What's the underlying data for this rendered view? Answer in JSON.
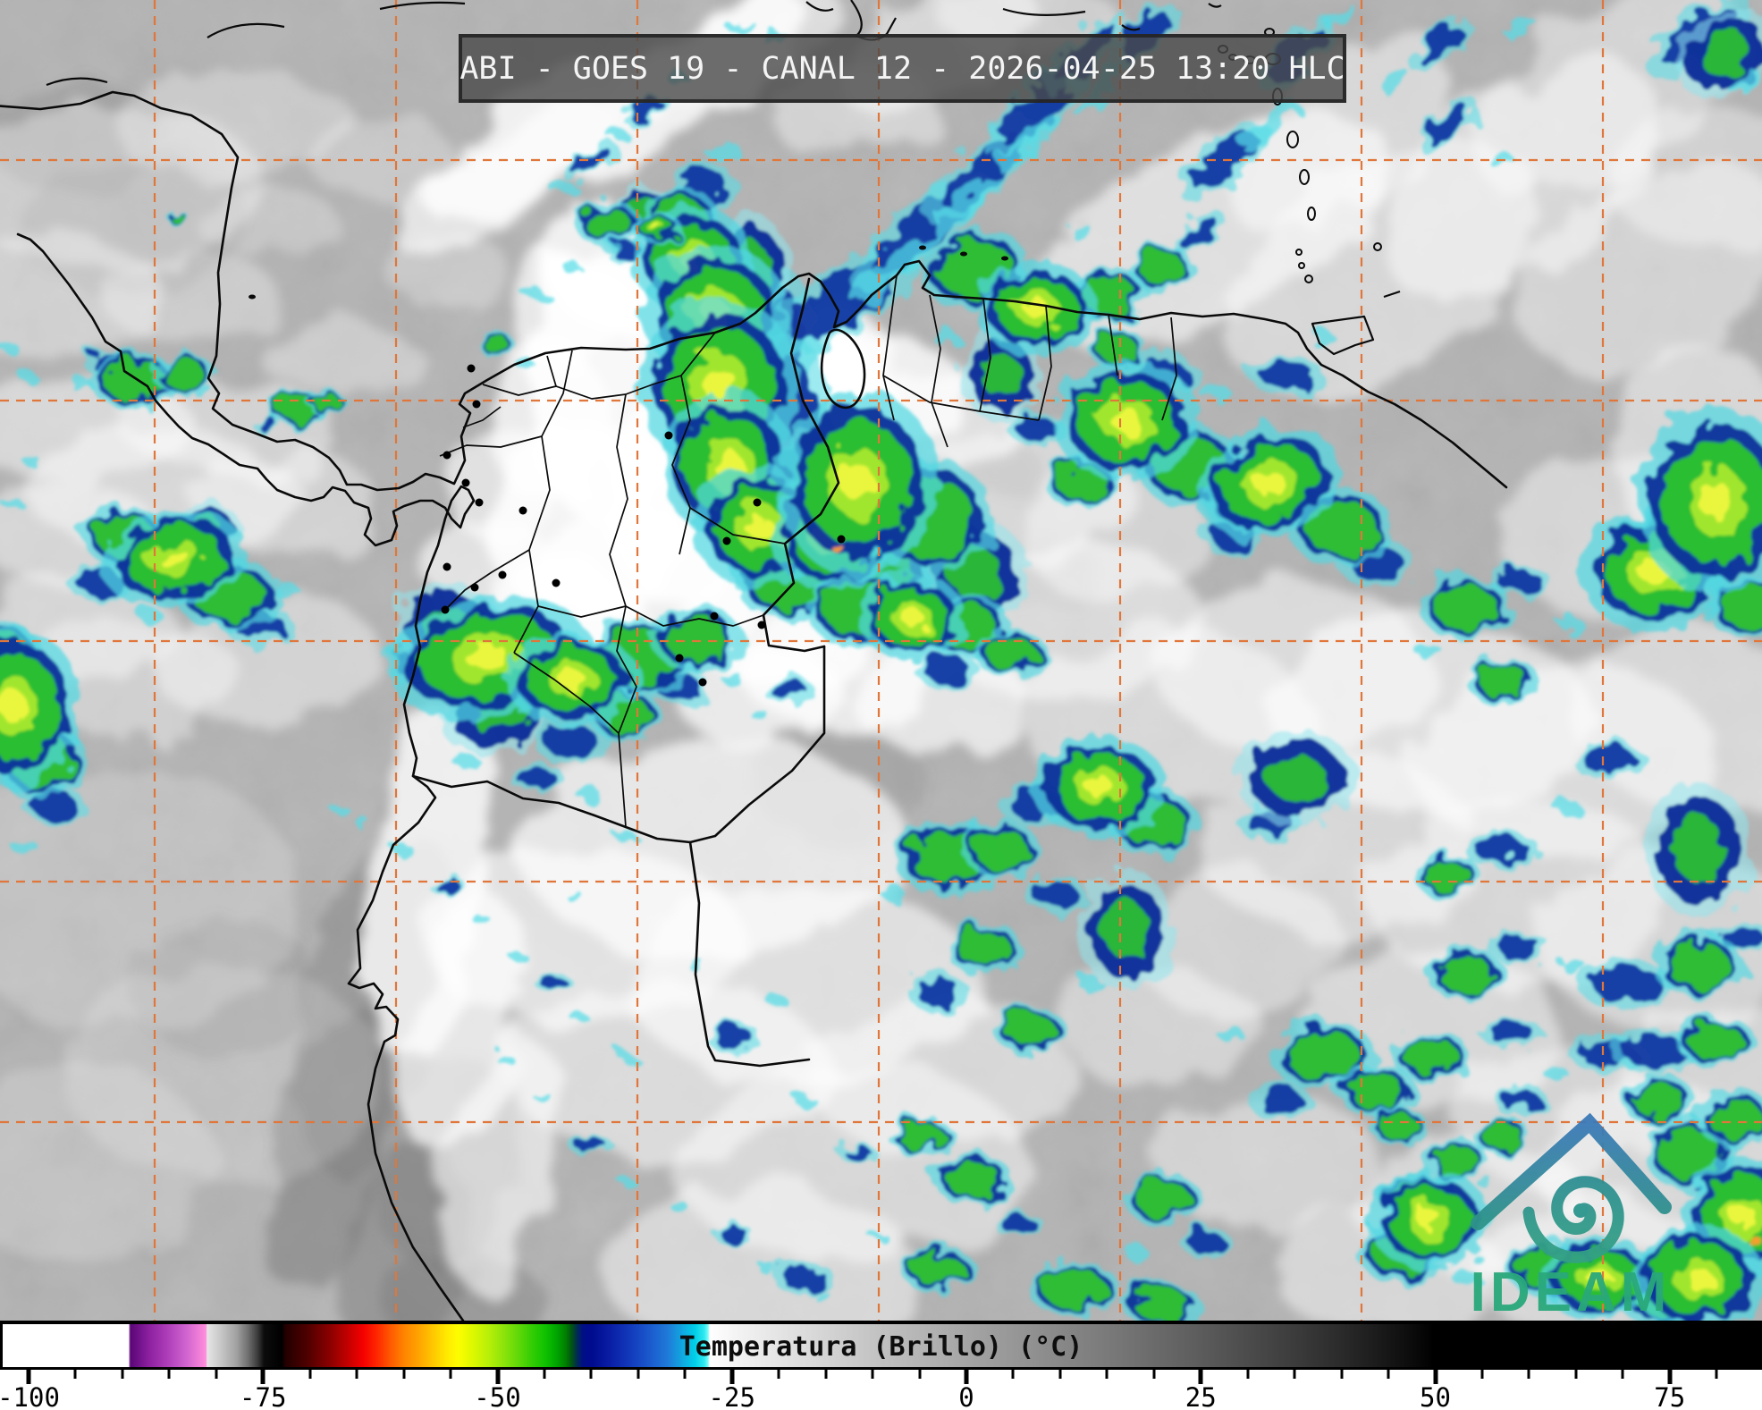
{
  "header": {
    "title": "ABI - GOES 19 - CANAL 12 - 2026-04-25 13:20 HLC"
  },
  "colorbar": {
    "label": "Temperatura (Brillo) (°C)",
    "tick_labels": [
      "-100",
      "-75",
      "-50",
      "-25",
      "0",
      "25",
      "50",
      "75"
    ],
    "tick_values": [
      -100,
      -75,
      -50,
      -25,
      0,
      25,
      50,
      75
    ],
    "minor_tick_step": 5,
    "minor_tick_range": [
      -100,
      80
    ],
    "gradient_stops": [
      [
        -103.1,
        "#ffffff"
      ],
      [
        -89.6,
        "#ffffff"
      ],
      [
        -89.4,
        "#5a0677"
      ],
      [
        -87.5,
        "#8a1f9e"
      ],
      [
        -85.5,
        "#ad3cb8"
      ],
      [
        -83.5,
        "#cf63cf"
      ],
      [
        -82,
        "#f07fd7"
      ],
      [
        -81.3,
        "#ff8fdc"
      ],
      [
        -81.2,
        "#e6e6e6"
      ],
      [
        -79.5,
        "#c2c2c2"
      ],
      [
        -78,
        "#a0a0a0"
      ],
      [
        -76.8,
        "#6f6f6f"
      ],
      [
        -75.8,
        "#3c3c3c"
      ],
      [
        -75.1,
        "#0c0c0c"
      ],
      [
        -73.2,
        "#000000"
      ],
      [
        -72.8,
        "#230000"
      ],
      [
        -70.5,
        "#4e0000"
      ],
      [
        -68,
        "#8c0000"
      ],
      [
        -66,
        "#c80000"
      ],
      [
        -64.5,
        "#f50000"
      ],
      [
        -63,
        "#ff2800"
      ],
      [
        -61.5,
        "#ff5c00"
      ],
      [
        -60,
        "#ff8700"
      ],
      [
        -58.5,
        "#ffa500"
      ],
      [
        -57,
        "#ffc800"
      ],
      [
        -55.5,
        "#ffeb00"
      ],
      [
        -54.3,
        "#fdfd00"
      ],
      [
        -52.5,
        "#d7f700"
      ],
      [
        -51,
        "#b5ef08"
      ],
      [
        -49.5,
        "#8ee40a"
      ],
      [
        -48,
        "#63d908"
      ],
      [
        -46.5,
        "#35cd04"
      ],
      [
        -45,
        "#0fc200"
      ],
      [
        -43.8,
        "#00a500"
      ],
      [
        -42.8,
        "#007d00"
      ],
      [
        -42.2,
        "#005413"
      ],
      [
        -41.6,
        "#002a53"
      ],
      [
        -41,
        "#000f86"
      ],
      [
        -40,
        "#000b8f"
      ],
      [
        -38,
        "#0a1fa5"
      ],
      [
        -36,
        "#1239bb"
      ],
      [
        -34,
        "#1a57cc"
      ],
      [
        -32,
        "#1f78d8"
      ],
      [
        -30.5,
        "#12a3df"
      ],
      [
        -29,
        "#00cfe8"
      ],
      [
        -28,
        "#2fe9f0"
      ],
      [
        -27.6,
        "#7ffcfc"
      ],
      [
        -27.45,
        "#ffffff"
      ],
      [
        -25,
        "#f5f5f5"
      ],
      [
        -20,
        "#e4e4e4"
      ],
      [
        -15,
        "#d4d4d4"
      ],
      [
        -10,
        "#c4c4c4"
      ],
      [
        -5,
        "#b5b5b5"
      ],
      [
        0,
        "#a5a5a5"
      ],
      [
        5,
        "#979797"
      ],
      [
        10,
        "#888888"
      ],
      [
        15,
        "#7a7a7a"
      ],
      [
        20,
        "#6b6b6b"
      ],
      [
        25,
        "#5c5c5c"
      ],
      [
        30,
        "#4c4c4c"
      ],
      [
        35,
        "#3c3c3c"
      ],
      [
        40,
        "#2b2b2b"
      ],
      [
        44,
        "#1b1b1b"
      ],
      [
        48,
        "#0a0a0a"
      ],
      [
        50,
        "#000000"
      ],
      [
        85,
        "#000000"
      ]
    ]
  },
  "logo": {
    "text": "IDEAM",
    "roof_color_top": "#3c7ab8",
    "roof_color_bottom": "#2f9489",
    "spiral_color": "#2b958d",
    "text_color": "#2aa87b"
  },
  "colors": {
    "background_gray": "#b3b3b3",
    "grid_orange": "#e0763a",
    "border_black": "#0a0a0a",
    "storm_cyan": "#52d7e2",
    "storm_navy": "#0b2b97",
    "storm_green": "#2fc52f",
    "storm_yellow": "#eef73d",
    "titlebar_bg": "#484848",
    "titlebar_text": "#f4f4f4"
  }
}
